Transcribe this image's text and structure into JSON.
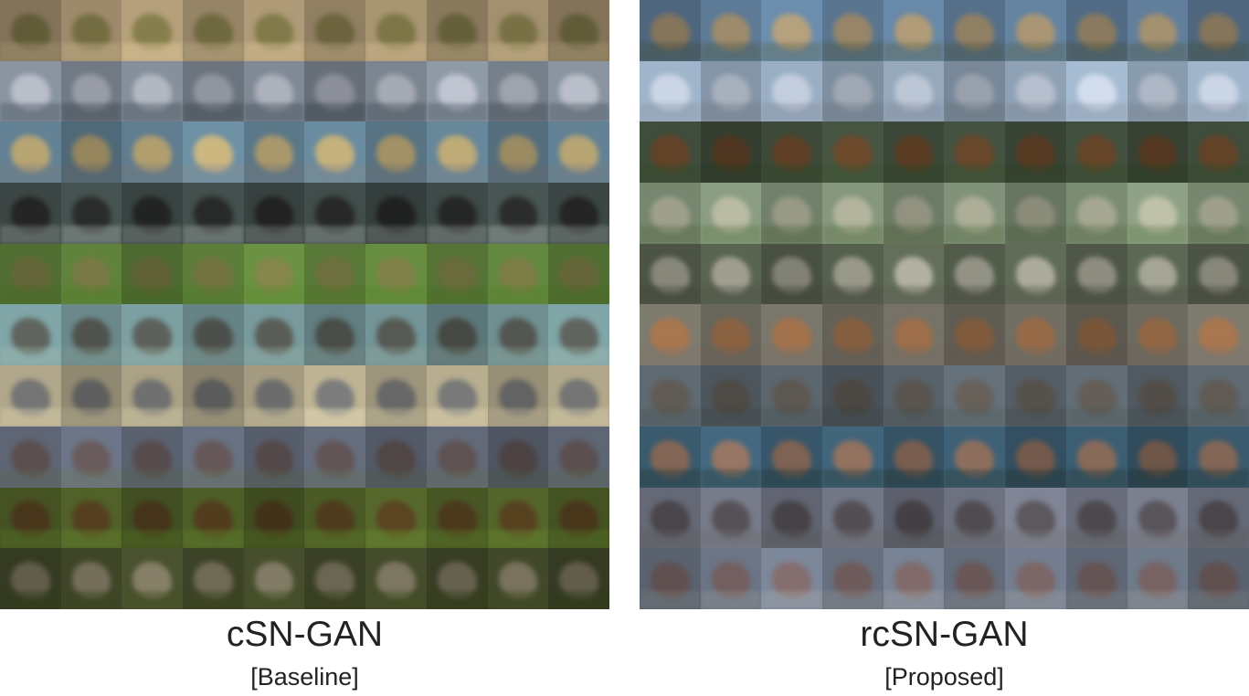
{
  "panels": [
    {
      "title": "cSN-GAN",
      "subtitle": "[Baseline]",
      "rows": [
        {
          "bg": "#9c8a6a",
          "subj": "rgba(90,90,40,0.6)",
          "ground": "rgba(190,170,130,0.5)"
        },
        {
          "bg": "#7b8590",
          "subj": "rgba(200,200,210,0.55)",
          "ground": "rgba(60,70,80,0.4)"
        },
        {
          "bg": "#5f7d8f",
          "subj": "rgba(230,180,90,0.6)",
          "ground": "rgba(120,120,120,0.35)"
        },
        {
          "bg": "#3e4a48",
          "subj": "rgba(25,20,20,0.65)",
          "ground": "rgba(160,170,160,0.35)"
        },
        {
          "bg": "#5c7e3a",
          "subj": "rgba(130,110,70,0.6)",
          "ground": "rgba(80,120,40,0.4)"
        },
        {
          "bg": "#6f8f91",
          "subj": "rgba(60,40,30,0.55)",
          "ground": "rgba(140,160,150,0.35)"
        },
        {
          "bg": "#a49b80",
          "subj": "rgba(60,70,90,0.55)",
          "ground": "rgba(200,190,160,0.45)"
        },
        {
          "bg": "#5e6675",
          "subj": "rgba(90,60,50,0.55)",
          "ground": "rgba(90,100,80,0.4)"
        },
        {
          "bg": "#4b5a26",
          "subj": "rgba(80,45,25,0.7)",
          "ground": "rgba(90,120,40,0.45)"
        },
        {
          "bg": "#3f4628",
          "subj": "rgba(170,150,140,0.5)",
          "ground": "rgba(60,70,30,0.45)"
        }
      ]
    },
    {
      "title": "rcSN-GAN",
      "subtitle": "[Proposed]",
      "rows": [
        {
          "bg": "#5d7a96",
          "subj": "rgba(200,150,80,0.6)",
          "ground": "rgba(80,90,70,0.4)"
        },
        {
          "bg": "#8fa2b5",
          "subj": "rgba(220,220,230,0.5)",
          "ground": "rgba(120,130,140,0.35)"
        },
        {
          "bg": "#3d4a3a",
          "subj": "rgba(110,60,30,0.7)",
          "ground": "rgba(50,70,40,0.45)"
        },
        {
          "bg": "#7b8c74",
          "subj": "rgba(200,190,170,0.55)",
          "ground": "rgba(90,110,70,0.4)"
        },
        {
          "bg": "#56604e",
          "subj": "rgba(210,200,190,0.55)",
          "ground": "rgba(80,80,70,0.4)"
        },
        {
          "bg": "#6d6a60",
          "subj": "rgba(170,100,50,0.6)",
          "ground": "rgba(110,100,90,0.4)"
        },
        {
          "bg": "#58626a",
          "subj": "rgba(90,75,60,0.6)",
          "ground": "rgba(70,80,80,0.4)"
        },
        {
          "bg": "#3a5a6e",
          "subj": "rgba(180,110,70,0.6)",
          "ground": "rgba(40,60,60,0.45)"
        },
        {
          "bg": "#6e7280",
          "subj": "rgba(60,50,50,0.6)",
          "ground": "rgba(100,100,100,0.4)"
        },
        {
          "bg": "#6b7585",
          "subj": "rgba(120,80,70,0.6)",
          "ground": "rgba(150,150,150,0.35)"
        }
      ]
    }
  ]
}
